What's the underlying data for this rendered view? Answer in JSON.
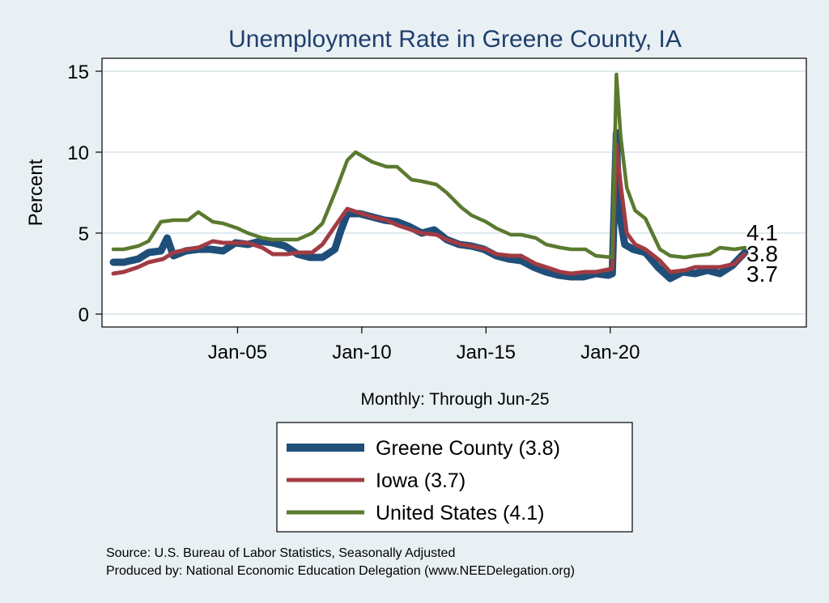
{
  "chart_data": {
    "type": "line",
    "title": "Unemployment Rate in Greene  County, IA",
    "ylabel": "Percent",
    "xnote": "Monthly: Through Jun-25",
    "ylim": [
      0,
      15
    ],
    "xlim": [
      "2000-01",
      "2025-06"
    ],
    "yticks": [
      "0",
      "5",
      "10",
      "15"
    ],
    "xticks": [
      {
        "date": "2005-01",
        "label": "Jan-05"
      },
      {
        "date": "2010-01",
        "label": "Jan-10"
      },
      {
        "date": "2015-01",
        "label": "Jan-15"
      },
      {
        "date": "2020-01",
        "label": "Jan-20"
      }
    ],
    "grid": true,
    "legend_position": "bottom",
    "series": [
      {
        "name": "Greene  County (3.8)",
        "end_label": "3.8",
        "color": "#1f4e79",
        "points": [
          [
            "2000-01",
            3.2
          ],
          [
            "2000-06",
            3.2
          ],
          [
            "2001-01",
            3.4
          ],
          [
            "2001-06",
            3.8
          ],
          [
            "2001-12",
            3.9
          ],
          [
            "2002-03",
            4.7
          ],
          [
            "2002-06",
            3.6
          ],
          [
            "2002-12",
            3.9
          ],
          [
            "2003-06",
            4.0
          ],
          [
            "2003-12",
            4.0
          ],
          [
            "2004-06",
            3.9
          ],
          [
            "2004-12",
            4.4
          ],
          [
            "2005-06",
            4.3
          ],
          [
            "2005-12",
            4.5
          ],
          [
            "2006-06",
            4.4
          ],
          [
            "2006-12",
            4.2
          ],
          [
            "2007-06",
            3.7
          ],
          [
            "2007-12",
            3.5
          ],
          [
            "2008-06",
            3.5
          ],
          [
            "2008-12",
            4.0
          ],
          [
            "2009-03",
            5.2
          ],
          [
            "2009-06",
            6.2
          ],
          [
            "2009-12",
            6.2
          ],
          [
            "2010-06",
            6.0
          ],
          [
            "2010-12",
            5.8
          ],
          [
            "2011-06",
            5.7
          ],
          [
            "2011-12",
            5.4
          ],
          [
            "2012-06",
            5.0
          ],
          [
            "2012-12",
            5.2
          ],
          [
            "2013-06",
            4.6
          ],
          [
            "2013-12",
            4.3
          ],
          [
            "2014-06",
            4.2
          ],
          [
            "2014-12",
            4.0
          ],
          [
            "2015-06",
            3.6
          ],
          [
            "2015-12",
            3.4
          ],
          [
            "2016-06",
            3.3
          ],
          [
            "2016-12",
            2.9
          ],
          [
            "2017-06",
            2.6
          ],
          [
            "2017-12",
            2.4
          ],
          [
            "2018-06",
            2.3
          ],
          [
            "2018-12",
            2.3
          ],
          [
            "2019-06",
            2.5
          ],
          [
            "2019-12",
            2.4
          ],
          [
            "2020-02",
            2.5
          ],
          [
            "2020-04",
            11.2
          ],
          [
            "2020-05",
            6.6
          ],
          [
            "2020-08",
            4.3
          ],
          [
            "2020-12",
            4.0
          ],
          [
            "2021-06",
            3.8
          ],
          [
            "2021-12",
            2.9
          ],
          [
            "2022-06",
            2.2
          ],
          [
            "2022-12",
            2.6
          ],
          [
            "2023-06",
            2.5
          ],
          [
            "2023-12",
            2.7
          ],
          [
            "2024-06",
            2.5
          ],
          [
            "2024-12",
            3.0
          ],
          [
            "2025-06",
            3.8
          ]
        ]
      },
      {
        "name": "Iowa (3.7)",
        "end_label": "3.7",
        "color": "#a23b43",
        "points": [
          [
            "2000-01",
            2.5
          ],
          [
            "2000-06",
            2.6
          ],
          [
            "2001-01",
            2.9
          ],
          [
            "2001-06",
            3.2
          ],
          [
            "2002-01",
            3.4
          ],
          [
            "2002-06",
            3.8
          ],
          [
            "2003-01",
            4.0
          ],
          [
            "2003-06",
            4.1
          ],
          [
            "2004-01",
            4.5
          ],
          [
            "2004-06",
            4.4
          ],
          [
            "2005-01",
            4.4
          ],
          [
            "2005-06",
            4.4
          ],
          [
            "2006-01",
            4.1
          ],
          [
            "2006-06",
            3.7
          ],
          [
            "2007-01",
            3.7
          ],
          [
            "2007-06",
            3.8
          ],
          [
            "2008-01",
            3.8
          ],
          [
            "2008-06",
            4.3
          ],
          [
            "2009-01",
            5.6
          ],
          [
            "2009-06",
            6.5
          ],
          [
            "2010-01",
            6.2
          ],
          [
            "2010-06",
            6.0
          ],
          [
            "2011-01",
            5.8
          ],
          [
            "2011-06",
            5.5
          ],
          [
            "2012-01",
            5.2
          ],
          [
            "2012-06",
            5.0
          ],
          [
            "2013-01",
            4.9
          ],
          [
            "2013-06",
            4.6
          ],
          [
            "2014-01",
            4.3
          ],
          [
            "2014-06",
            4.2
          ],
          [
            "2015-01",
            4.0
          ],
          [
            "2015-06",
            3.7
          ],
          [
            "2016-01",
            3.6
          ],
          [
            "2016-06",
            3.6
          ],
          [
            "2017-01",
            3.1
          ],
          [
            "2017-06",
            2.9
          ],
          [
            "2018-01",
            2.6
          ],
          [
            "2018-06",
            2.5
          ],
          [
            "2019-01",
            2.6
          ],
          [
            "2019-06",
            2.6
          ],
          [
            "2020-02",
            2.8
          ],
          [
            "2020-04",
            10.5
          ],
          [
            "2020-06",
            8.0
          ],
          [
            "2020-09",
            5.0
          ],
          [
            "2021-01",
            4.3
          ],
          [
            "2021-06",
            4.0
          ],
          [
            "2022-01",
            3.3
          ],
          [
            "2022-06",
            2.6
          ],
          [
            "2023-01",
            2.7
          ],
          [
            "2023-06",
            2.9
          ],
          [
            "2024-01",
            2.9
          ],
          [
            "2024-06",
            2.9
          ],
          [
            "2025-01",
            3.1
          ],
          [
            "2025-06",
            3.7
          ]
        ]
      },
      {
        "name": "United States (4.1)",
        "end_label": "4.1",
        "color": "#5a7a2e",
        "points": [
          [
            "2000-01",
            4.0
          ],
          [
            "2000-06",
            4.0
          ],
          [
            "2001-01",
            4.2
          ],
          [
            "2001-06",
            4.5
          ],
          [
            "2001-12",
            5.7
          ],
          [
            "2002-06",
            5.8
          ],
          [
            "2003-01",
            5.8
          ],
          [
            "2003-06",
            6.3
          ],
          [
            "2004-01",
            5.7
          ],
          [
            "2004-06",
            5.6
          ],
          [
            "2005-01",
            5.3
          ],
          [
            "2005-06",
            5.0
          ],
          [
            "2006-01",
            4.7
          ],
          [
            "2006-06",
            4.6
          ],
          [
            "2007-01",
            4.6
          ],
          [
            "2007-06",
            4.6
          ],
          [
            "2008-01",
            5.0
          ],
          [
            "2008-06",
            5.6
          ],
          [
            "2009-01",
            7.8
          ],
          [
            "2009-06",
            9.5
          ],
          [
            "2009-10",
            10.0
          ],
          [
            "2010-06",
            9.4
          ],
          [
            "2011-01",
            9.1
          ],
          [
            "2011-06",
            9.1
          ],
          [
            "2012-01",
            8.3
          ],
          [
            "2012-06",
            8.2
          ],
          [
            "2013-01",
            8.0
          ],
          [
            "2013-06",
            7.5
          ],
          [
            "2014-01",
            6.6
          ],
          [
            "2014-06",
            6.1
          ],
          [
            "2015-01",
            5.7
          ],
          [
            "2015-06",
            5.3
          ],
          [
            "2016-01",
            4.9
          ],
          [
            "2016-06",
            4.9
          ],
          [
            "2017-01",
            4.7
          ],
          [
            "2017-06",
            4.3
          ],
          [
            "2018-01",
            4.1
          ],
          [
            "2018-06",
            4.0
          ],
          [
            "2019-01",
            4.0
          ],
          [
            "2019-06",
            3.6
          ],
          [
            "2020-02",
            3.5
          ],
          [
            "2020-04",
            14.8
          ],
          [
            "2020-06",
            11.0
          ],
          [
            "2020-09",
            7.8
          ],
          [
            "2021-01",
            6.4
          ],
          [
            "2021-06",
            5.9
          ],
          [
            "2022-01",
            4.0
          ],
          [
            "2022-06",
            3.6
          ],
          [
            "2023-01",
            3.5
          ],
          [
            "2023-06",
            3.6
          ],
          [
            "2024-01",
            3.7
          ],
          [
            "2024-06",
            4.1
          ],
          [
            "2025-01",
            4.0
          ],
          [
            "2025-06",
            4.1
          ]
        ]
      }
    ],
    "source_lines": [
      "Source: U.S. Bureau of Labor Statistics, Seasonally Adjusted",
      "Produced by: National Economic Education Delegation (www.NEEDelegation.org)"
    ]
  }
}
